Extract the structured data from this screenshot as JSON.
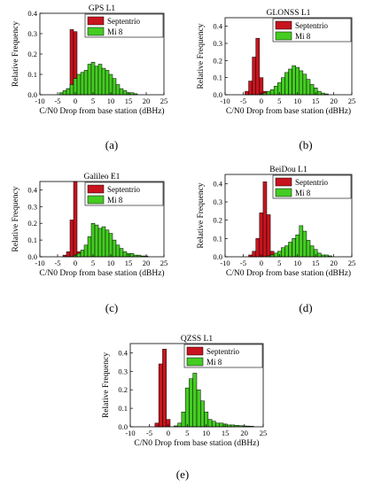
{
  "figure": {
    "panels": [
      {
        "letter": "(a)"
      },
      {
        "letter": "(b)"
      },
      {
        "letter": "(c)"
      },
      {
        "letter": "(d)"
      },
      {
        "letter": "(e)"
      }
    ]
  },
  "colors": {
    "septentrio": "#c8141e",
    "mi8": "#44cc22",
    "bar_edge": "#000000"
  },
  "chart_data": [
    {
      "type": "bar",
      "title": "GPS L1",
      "xlabel": "C/N0 Drop from base station (dBHz)",
      "ylabel": "Relative Frequency",
      "xlim": [
        -10,
        25
      ],
      "ylim": [
        0,
        0.4
      ],
      "xticks": [
        -10,
        -5,
        0,
        5,
        10,
        15,
        20,
        25
      ],
      "yticks": [
        0.0,
        0.1,
        0.2,
        0.3,
        0.4
      ],
      "legend": "top-right",
      "series": [
        {
          "name": "Septentrio",
          "x": [
            -3,
            -2,
            -1,
            0,
            1
          ],
          "values": [
            0.01,
            0.03,
            0.32,
            0.31,
            0.02
          ]
        },
        {
          "name": "Mi 8",
          "x": [
            -4,
            -3,
            -2,
            -1,
            0,
            1,
            2,
            3,
            4,
            5,
            6,
            7,
            8,
            9,
            10,
            11,
            12,
            13,
            14,
            15,
            16,
            17
          ],
          "values": [
            0.01,
            0.02,
            0.03,
            0.05,
            0.08,
            0.1,
            0.11,
            0.12,
            0.15,
            0.16,
            0.14,
            0.15,
            0.13,
            0.12,
            0.1,
            0.08,
            0.05,
            0.03,
            0.02,
            0.01,
            0.01,
            0.005
          ]
        }
      ]
    },
    {
      "type": "bar",
      "title": "GLONSS L1",
      "xlabel": "C/N0 Drop from base station (dBHz)",
      "ylabel": "Relative Frequency",
      "xlim": [
        -10,
        25
      ],
      "ylim": [
        0,
        0.45
      ],
      "xticks": [
        -10,
        -5,
        0,
        5,
        10,
        15,
        20,
        25
      ],
      "yticks": [
        0.0,
        0.1,
        0.2,
        0.3,
        0.4
      ],
      "legend": "top-right",
      "series": [
        {
          "name": "Septentrio",
          "x": [
            -4,
            -3,
            -2,
            -1,
            0,
            1
          ],
          "values": [
            0.02,
            0.08,
            0.22,
            0.33,
            0.1,
            0.02
          ]
        },
        {
          "name": "Mi 8",
          "x": [
            0,
            1,
            2,
            3,
            4,
            5,
            6,
            7,
            8,
            9,
            10,
            11,
            12,
            13,
            14,
            15,
            16,
            17,
            18
          ],
          "values": [
            0.005,
            0.01,
            0.02,
            0.03,
            0.05,
            0.07,
            0.1,
            0.13,
            0.15,
            0.17,
            0.16,
            0.14,
            0.12,
            0.09,
            0.06,
            0.04,
            0.02,
            0.01,
            0.005
          ]
        }
      ]
    },
    {
      "type": "bar",
      "title": "Galileo E1",
      "xlabel": "C/N0 Drop from base station (dBHz)",
      "ylabel": "Relative Frequency",
      "xlim": [
        -10,
        25
      ],
      "ylim": [
        0,
        0.45
      ],
      "xticks": [
        -10,
        -5,
        0,
        5,
        10,
        15,
        20,
        25
      ],
      "yticks": [
        0.0,
        0.1,
        0.2,
        0.3,
        0.4
      ],
      "legend": "top-right",
      "series": [
        {
          "name": "Septentrio",
          "x": [
            -3,
            -2,
            -1,
            0,
            1
          ],
          "values": [
            0.01,
            0.03,
            0.22,
            0.45,
            0.03
          ]
        },
        {
          "name": "Mi 8",
          "x": [
            0,
            1,
            2,
            3,
            4,
            5,
            6,
            7,
            8,
            9,
            10,
            11,
            12,
            13,
            14,
            15,
            16,
            17,
            18,
            19,
            20
          ],
          "values": [
            0.01,
            0.02,
            0.04,
            0.07,
            0.12,
            0.2,
            0.19,
            0.17,
            0.18,
            0.16,
            0.14,
            0.1,
            0.07,
            0.05,
            0.03,
            0.02,
            0.02,
            0.01,
            0.01,
            0.005,
            0.005
          ]
        }
      ]
    },
    {
      "type": "bar",
      "title": "BeiDou L1",
      "xlabel": "C/N0 Drop from base station (dBHz)",
      "ylabel": "Relative Frequency",
      "xlim": [
        -10,
        25
      ],
      "ylim": [
        0,
        0.45
      ],
      "xticks": [
        -10,
        -5,
        0,
        5,
        10,
        15,
        20,
        25
      ],
      "yticks": [
        0.0,
        0.1,
        0.2,
        0.3,
        0.4
      ],
      "legend": "top-right",
      "series": [
        {
          "name": "Septentrio",
          "x": [
            -3,
            -2,
            -1,
            0,
            1,
            2,
            3
          ],
          "values": [
            0.01,
            0.03,
            0.1,
            0.24,
            0.41,
            0.23,
            0.03
          ]
        },
        {
          "name": "Mi 8",
          "x": [
            2,
            3,
            4,
            5,
            6,
            7,
            8,
            9,
            10,
            11,
            12,
            13,
            14,
            15,
            16,
            17,
            18,
            19
          ],
          "values": [
            0.005,
            0.01,
            0.02,
            0.03,
            0.05,
            0.06,
            0.08,
            0.1,
            0.12,
            0.17,
            0.14,
            0.09,
            0.06,
            0.04,
            0.02,
            0.01,
            0.01,
            0.005
          ]
        }
      ]
    },
    {
      "type": "bar",
      "title": "QZSS L1",
      "xlabel": "C/N0 Drop from base station (dBHz)",
      "ylabel": "Relative Frequency",
      "xlim": [
        -10,
        25
      ],
      "ylim": [
        0,
        0.45
      ],
      "xticks": [
        -10,
        -5,
        0,
        5,
        10,
        15,
        20,
        25
      ],
      "yticks": [
        0.0,
        0.1,
        0.2,
        0.3,
        0.4
      ],
      "legend": "top-right",
      "series": [
        {
          "name": "Septentrio",
          "x": [
            -3,
            -2,
            -1,
            0
          ],
          "values": [
            0.02,
            0.34,
            0.42,
            0.04
          ]
        },
        {
          "name": "Mi 8",
          "x": [
            2,
            3,
            4,
            5,
            6,
            7,
            8,
            9,
            10,
            11,
            12,
            13,
            14,
            15,
            16,
            17,
            18,
            19,
            20,
            21,
            22
          ],
          "values": [
            0.005,
            0.02,
            0.08,
            0.21,
            0.26,
            0.29,
            0.2,
            0.14,
            0.08,
            0.04,
            0.03,
            0.02,
            0.02,
            0.015,
            0.01,
            0.01,
            0.008,
            0.006,
            0.005,
            0.004,
            0.003
          ]
        }
      ]
    }
  ]
}
